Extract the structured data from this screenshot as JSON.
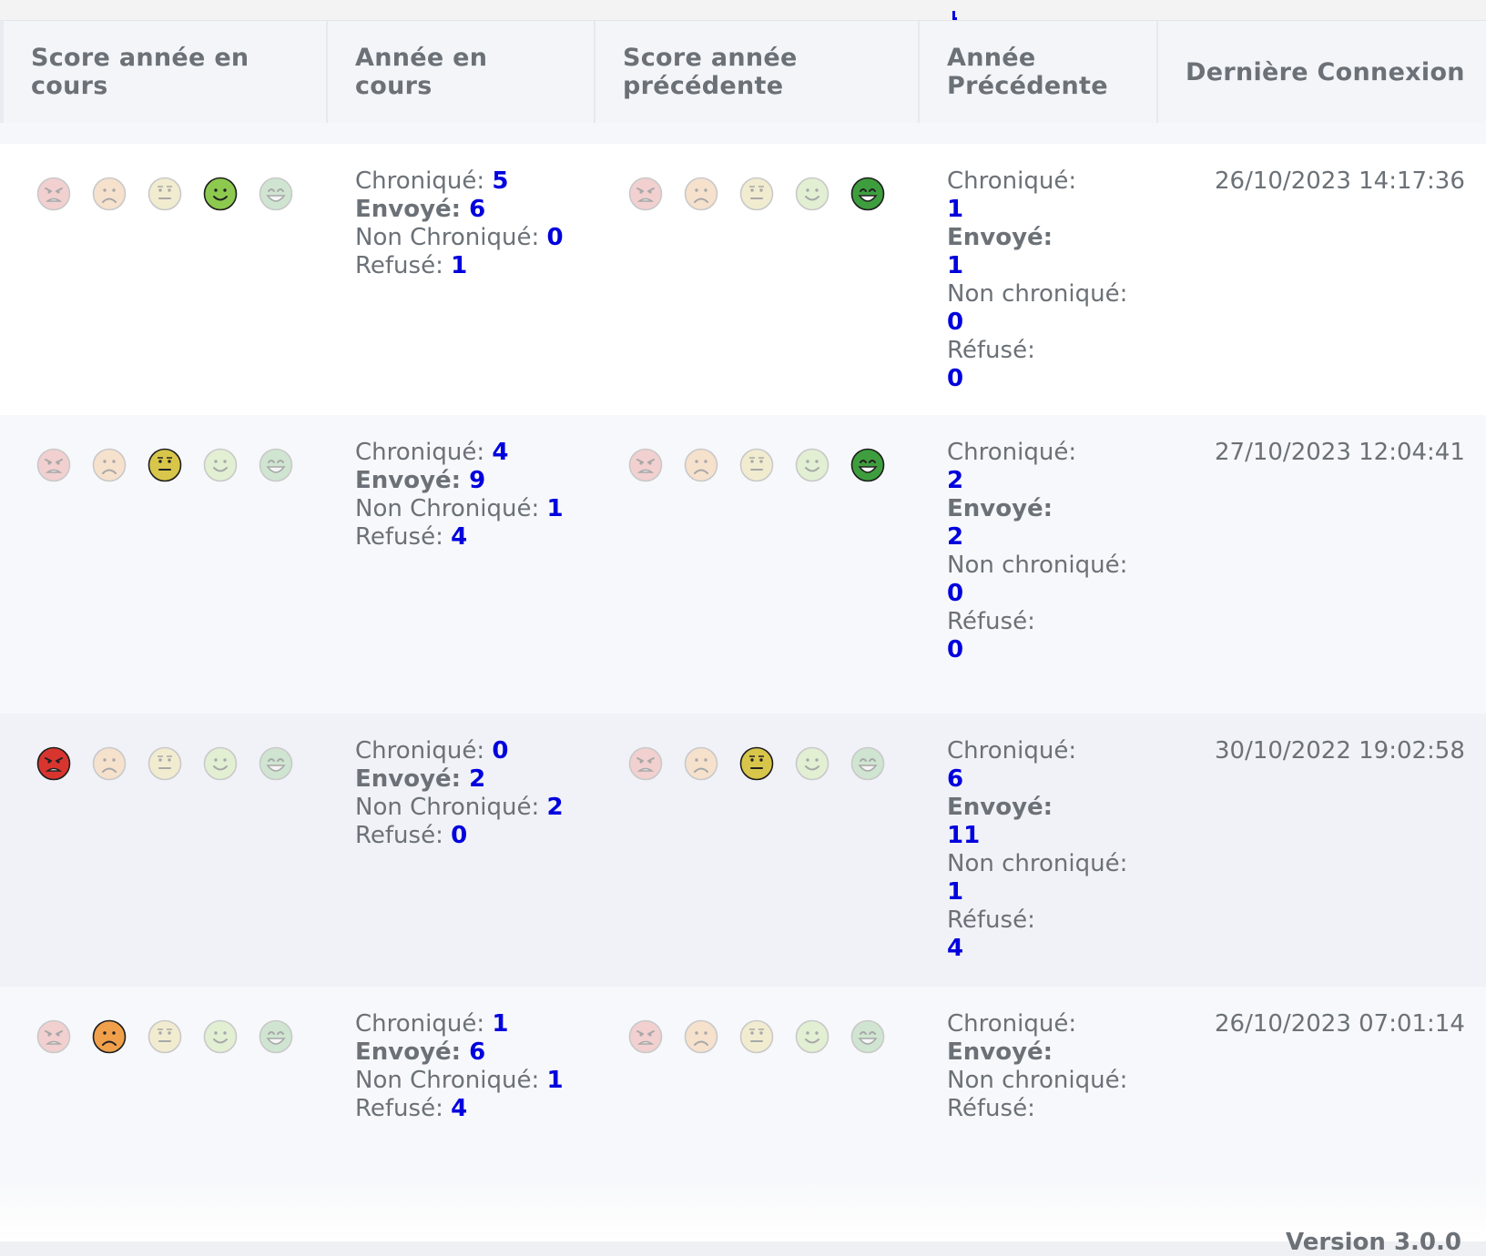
{
  "table": {
    "headers": [
      {
        "key": "score-current",
        "label": "Score année en cours"
      },
      {
        "key": "year-current",
        "label": "Année en cours"
      },
      {
        "key": "score-previous",
        "label": "Score année précédente"
      },
      {
        "key": "year-previous",
        "label": "Année Précédente"
      },
      {
        "key": "last-login",
        "label": "Dernière Connexion"
      }
    ],
    "labels": {
      "chronique": "Chroniqué: ",
      "envoye": "Envoyé: ",
      "non_chronique_current": "Non Chroniqué: ",
      "refuse": "Refusé: ",
      "chronique_prev": "Chroniqué:",
      "envoye_prev": "Envoyé:",
      "non_chronique_prev": "Non chroniqué:",
      "refuse_prev": "Réfusé:"
    },
    "score_levels": [
      "very-bad",
      "bad",
      "neutral",
      "good",
      "very-good"
    ],
    "score_colors": {
      "very-bad": "#d9352f",
      "bad": "#f0a04b",
      "neutral": "#d8c64a",
      "good": "#8dc94e",
      "very-good": "#3e9e3e",
      "inactive-very-bad": "#f2d0d0",
      "inactive-bad": "#f6e1cd",
      "inactive-neutral": "#f1ecd0",
      "inactive-good": "#e2efd3",
      "inactive-very-good": "#cfe5d1"
    },
    "rows": [
      {
        "current_score": 4,
        "current": {
          "chronique": "5",
          "envoye": "6",
          "non_chronique": "0",
          "refuse": "1"
        },
        "previous_score": 5,
        "previous": {
          "chronique": "1",
          "envoye": "1",
          "non_chronique": "0",
          "refuse": "0"
        },
        "last_login": "26/10/2023 14:17:36"
      },
      {
        "current_score": 3,
        "current": {
          "chronique": "4",
          "envoye": "9",
          "non_chronique": "1",
          "refuse": "4"
        },
        "previous_score": 5,
        "previous": {
          "chronique": "2",
          "envoye": "2",
          "non_chronique": "0",
          "refuse": "0"
        },
        "last_login": "27/10/2023 12:04:41"
      },
      {
        "current_score": 1,
        "current": {
          "chronique": "0",
          "envoye": "2",
          "non_chronique": "2",
          "refuse": "0"
        },
        "previous_score": 3,
        "previous": {
          "chronique": "6",
          "envoye": "11",
          "non_chronique": "1",
          "refuse": "4"
        },
        "last_login": "30/10/2022 19:02:58"
      },
      {
        "current_score": 2,
        "current": {
          "chronique": "1",
          "envoye": "6",
          "non_chronique": "1",
          "refuse": "4"
        },
        "previous_score": 0,
        "previous": {
          "chronique": "",
          "envoye": "",
          "non_chronique": "",
          "refuse": ""
        },
        "last_login": "26/10/2023 07:01:14"
      }
    ]
  },
  "footer": {
    "version_label": "Version 3.0.0"
  }
}
